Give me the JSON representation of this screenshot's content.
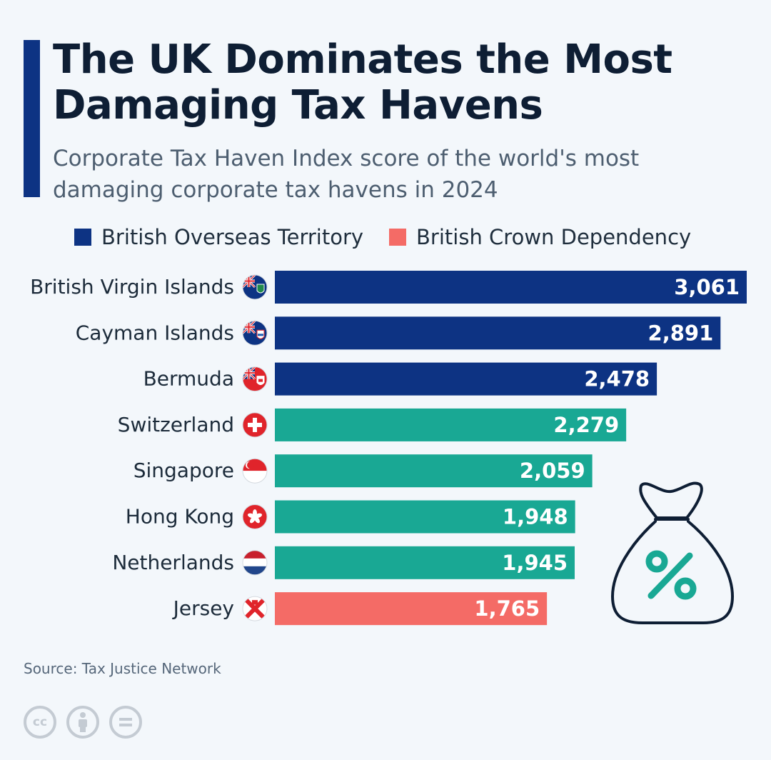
{
  "header": {
    "title": "The UK Dominates the Most Damaging Tax Havens",
    "subtitle": "Corporate Tax Haven Index score of the world's most damaging corporate tax havens in 2024"
  },
  "legend": [
    {
      "label": "British Overseas Territory",
      "color": "#0d3383"
    },
    {
      "label": "British Crown Dependency",
      "color": "#f46b66"
    }
  ],
  "colors": {
    "overseas_territory": "#0d3383",
    "crown_dependency": "#f46b66",
    "other": "#19a894"
  },
  "chart_data": {
    "type": "bar",
    "orientation": "horizontal",
    "title": "The UK Dominates the Most Damaging Tax Havens",
    "subtitle": "Corporate Tax Haven Index score of the world's most damaging corporate tax havens in 2024",
    "xlabel": "",
    "ylabel": "",
    "categories": [
      "British Virgin Islands",
      "Cayman Islands",
      "Bermuda",
      "Switzerland",
      "Singapore",
      "Hong Kong",
      "Netherlands",
      "Jersey"
    ],
    "values": [
      3061,
      2891,
      2478,
      2279,
      2059,
      1948,
      1945,
      1765
    ],
    "value_labels": [
      "3,061",
      "2,891",
      "2,478",
      "2,279",
      "2,059",
      "1,948",
      "1,945",
      "1,765"
    ],
    "groups": [
      "overseas_territory",
      "overseas_territory",
      "overseas_territory",
      "other",
      "other",
      "other",
      "other",
      "crown_dependency"
    ],
    "flag_icons": [
      "bvi-flag-icon",
      "cayman-flag-icon",
      "bermuda-flag-icon",
      "switzerland-flag-icon",
      "singapore-flag-icon",
      "hong-kong-flag-icon",
      "netherlands-flag-icon",
      "jersey-flag-icon"
    ],
    "xlim": [
      0,
      3061
    ],
    "grid": false,
    "legend_position": "top-left"
  },
  "decoration": {
    "icon": "money-bag-percent-icon"
  },
  "footer": {
    "source": "Source: Tax Justice Network",
    "license_icons": [
      "cc-icon",
      "attribution-icon",
      "no-derivatives-icon"
    ]
  }
}
